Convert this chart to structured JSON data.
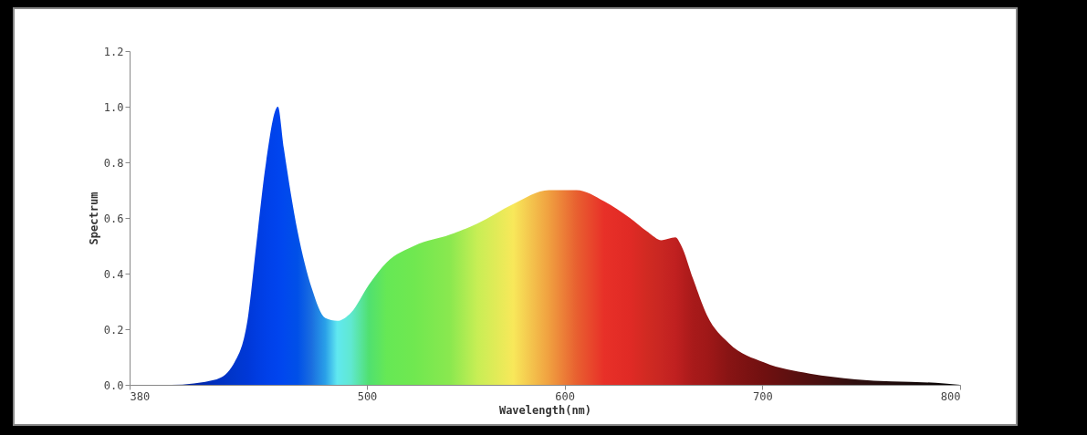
{
  "chart_data": {
    "type": "area",
    "xlabel": "Wavelength(nm)",
    "ylabel": "Spectrum",
    "x": [
      380,
      401,
      424,
      433,
      440,
      444,
      449,
      455,
      458,
      465,
      472,
      479,
      485,
      492,
      501,
      510,
      524,
      542,
      556,
      574,
      592,
      606,
      620,
      633,
      642,
      649,
      656,
      659,
      665,
      672,
      683,
      701,
      724,
      747,
      792,
      800
    ],
    "values": [
      0,
      0,
      0.02,
      0.08,
      0.25,
      0.5,
      0.8,
      1.0,
      0.85,
      0.55,
      0.35,
      0.24,
      0.23,
      0.26,
      0.36,
      0.44,
      0.5,
      0.54,
      0.58,
      0.65,
      0.7,
      0.7,
      0.66,
      0.6,
      0.55,
      0.52,
      0.53,
      0.5,
      0.38,
      0.25,
      0.15,
      0.08,
      0.04,
      0.02,
      0.005,
      0
    ],
    "colors": [
      "#001060",
      "#001a8c",
      "#0030c0",
      "#0036cc",
      "#0038d8",
      "#003ce0",
      "#0040e8",
      "#0044ee",
      "#0048ee",
      "#0050e8",
      "#1a6ee0",
      "#2aa0e8",
      "#60e8f0",
      "#60e8d0",
      "#50e070",
      "#66e855",
      "#70e850",
      "#8ae84f",
      "#c8ee55",
      "#f8e85a",
      "#f0a040",
      "#e86030",
      "#e83028",
      "#e02a25",
      "#d02a22",
      "#c82622",
      "#c02020",
      "#b81e1e",
      "#a81a1a",
      "#a01818",
      "#881414",
      "#701010",
      "#501010",
      "#301010",
      "#080404",
      "#000000"
    ],
    "xlim": [
      380,
      800
    ],
    "xticks": [
      380,
      500,
      600,
      700,
      800
    ],
    "ylim": [
      0,
      1.2
    ],
    "yticks": [
      {
        "value": 0,
        "label": "0.0"
      },
      {
        "value": 0.2,
        "label": "0.2"
      },
      {
        "value": 0.4,
        "label": "0.4"
      },
      {
        "value": 0.6,
        "label": "0.6"
      },
      {
        "value": 0.8,
        "label": "0.8"
      },
      {
        "value": 1.0,
        "label": "1.0"
      },
      {
        "value": 1.2,
        "label": "1.2"
      }
    ]
  }
}
